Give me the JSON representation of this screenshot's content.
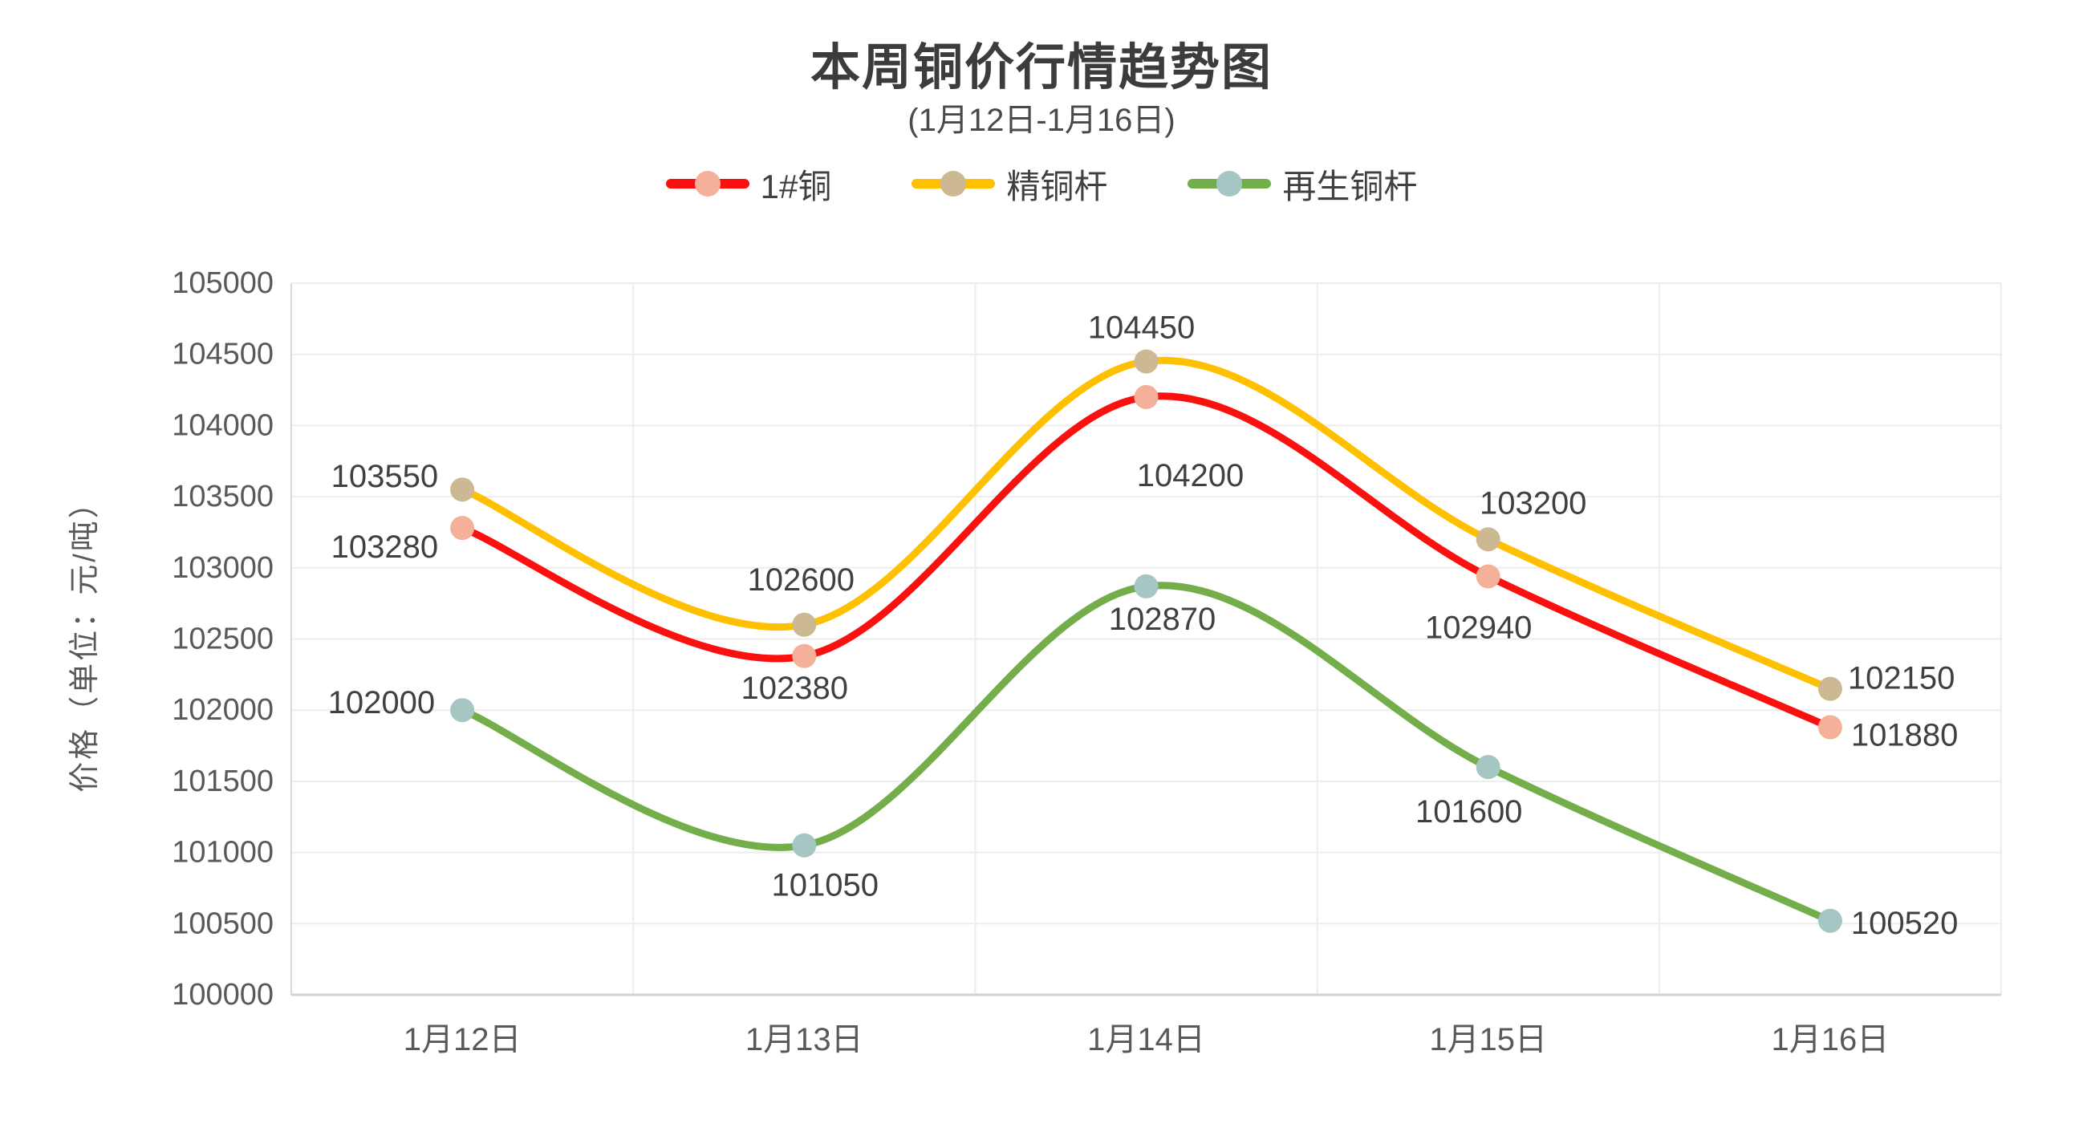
{
  "header": {
    "title": "本周铜价行情趋势图",
    "subtitle": "(1月12日-1月16日)"
  },
  "chart_data": {
    "type": "line",
    "smooth": true,
    "title": "本周铜价行情趋势图",
    "subtitle": "(1月12日-1月16日)",
    "categories": [
      "1月12日",
      "1月13日",
      "1月14日",
      "1月15日",
      "1月16日"
    ],
    "series": [
      {
        "name": "1#铜",
        "line_color": "#FB1010",
        "marker_color": "#F5B09A",
        "values": [
          103280,
          102380,
          104200,
          102940,
          101880
        ]
      },
      {
        "name": "精铜杆",
        "line_color": "#FFC000",
        "marker_color": "#CCB994",
        "values": [
          103550,
          102600,
          104450,
          103200,
          102150
        ]
      },
      {
        "name": "再生铜杆",
        "line_color": "#73AE4B",
        "marker_color": "#A5C6C3",
        "values": [
          102000,
          101050,
          102870,
          101600,
          100520
        ]
      }
    ],
    "xlabel": "",
    "ylabel": "价格（单位：元/吨）",
    "ylim": [
      100000,
      105000
    ],
    "ytick_step": 500,
    "yticks": [
      100000,
      100500,
      101000,
      101500,
      102000,
      102500,
      103000,
      103500,
      104000,
      104500,
      105000
    ],
    "grid": true,
    "legend_position": "top",
    "data_labels_shown": true,
    "colors": {
      "axis_line": "#D9D9D9",
      "gridline": "#EDEDED",
      "axis_text": "#57595B",
      "data_label_text": "#3E4144",
      "title_text": "#3C3C3C",
      "subtitle_text": "#4A4A4A",
      "legend_text": "#404040",
      "background": "#FFFFFF"
    }
  }
}
